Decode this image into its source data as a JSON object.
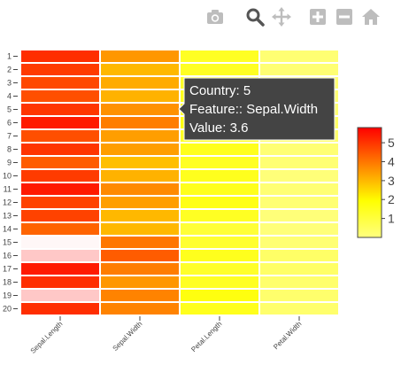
{
  "modebar": {
    "buttons": [
      {
        "name": "camera-icon",
        "color": "#bdbdbd"
      },
      {
        "name": "zoom-icon",
        "color": "#555555"
      },
      {
        "name": "pan-icon",
        "color": "#bdbdbd"
      },
      {
        "name": "zoom-in-icon",
        "color": "#bdbdbd"
      },
      {
        "name": "zoom-out-icon",
        "color": "#bdbdbd"
      },
      {
        "name": "home-icon",
        "color": "#bdbdbd"
      }
    ]
  },
  "chart_data": {
    "type": "heatmap",
    "title": "",
    "xlabel": "",
    "ylabel": "",
    "x_categories": [
      "Sepal.Length",
      "Sepal.Width",
      "Petal.Length",
      "Petal.Width"
    ],
    "y_categories": [
      "1",
      "2",
      "3",
      "4",
      "5",
      "6",
      "7",
      "8",
      "9",
      "10",
      "11",
      "12",
      "13",
      "14",
      "15",
      "16",
      "17",
      "18",
      "19",
      "20"
    ],
    "values": [
      [
        5.1,
        3.5,
        1.4,
        0.2
      ],
      [
        4.9,
        3.0,
        1.4,
        0.2
      ],
      [
        4.7,
        3.2,
        1.3,
        0.2
      ],
      [
        4.6,
        3.1,
        1.5,
        0.2
      ],
      [
        5.0,
        3.6,
        1.4,
        0.2
      ],
      [
        5.4,
        3.9,
        1.7,
        0.4
      ],
      [
        4.6,
        3.4,
        1.4,
        0.3
      ],
      [
        5.0,
        3.4,
        1.5,
        0.2
      ],
      [
        4.4,
        2.9,
        1.4,
        0.2
      ],
      [
        4.9,
        3.1,
        1.5,
        0.1
      ],
      [
        5.4,
        3.7,
        1.5,
        0.2
      ],
      [
        4.8,
        3.4,
        1.6,
        0.2
      ],
      [
        4.8,
        3.0,
        1.4,
        0.1
      ],
      [
        4.3,
        3.0,
        1.1,
        0.1
      ],
      [
        5.8,
        4.0,
        1.2,
        0.2
      ],
      [
        5.7,
        4.4,
        1.5,
        0.4
      ],
      [
        5.4,
        3.9,
        1.3,
        0.4
      ],
      [
        5.1,
        3.5,
        1.4,
        0.3
      ],
      [
        5.7,
        3.8,
        1.7,
        0.3
      ],
      [
        5.1,
        3.8,
        1.5,
        0.3
      ]
    ],
    "colorscale": [
      "#ffff80",
      "#ffff00",
      "#ff7f00",
      "#ff0000"
    ],
    "colorbar": {
      "range": [
        0,
        5.8
      ],
      "ticks": [
        1,
        2,
        3,
        4,
        5
      ]
    },
    "highlighted_rows": [
      "15",
      "16",
      "19"
    ],
    "tooltip": {
      "lines": [
        "Country: 5",
        "Feature:: Sepal.Width",
        "Value: 3.6"
      ],
      "row": "5",
      "column": "Sepal.Width"
    }
  }
}
